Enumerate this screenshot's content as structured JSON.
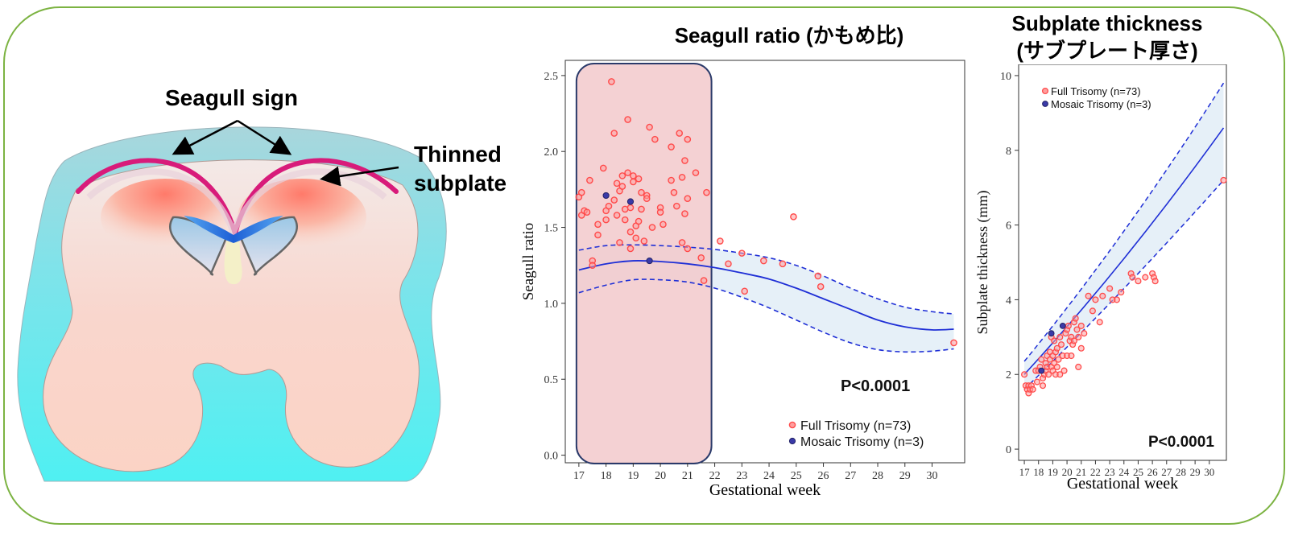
{
  "illustration": {
    "seagull_sign_label": "Seagull sign",
    "thinned_subplate_line1": "Thinned",
    "thinned_subplate_line2": "subplate"
  },
  "colors": {
    "frame": "#7cb342",
    "full_trisomy": "#ff4b4b",
    "mosaic_trisomy": "#3a3aa8",
    "fit_line": "#1f2fd6",
    "highlight_fill": "#f2c9cb",
    "highlight_stroke": "#2a3a6a",
    "band_fill": "#e6f0f8",
    "brain_cyan": "#5fe6ea",
    "brain_pink": "#f6d2c9",
    "seagull_magenta": "#d81b7a"
  },
  "chart_data": [
    {
      "type": "scatter",
      "title": "Seagull ratio (かもめ比)",
      "xlabel": "Gestational week",
      "ylabel": "Seagull ratio",
      "xlim": [
        16.5,
        31.2
      ],
      "ylim": [
        -0.05,
        2.6
      ],
      "xticks": [
        17,
        18,
        19,
        20,
        21,
        22,
        23,
        24,
        25,
        26,
        27,
        28,
        29,
        30
      ],
      "yticks": [
        0.0,
        0.5,
        1.0,
        1.5,
        2.0,
        2.5
      ],
      "ytick_labels": [
        "0.0",
        "0.5",
        "1.0",
        "1.5",
        "2.0",
        "2.5"
      ],
      "highlight_x_range": [
        17,
        22
      ],
      "annotation": "P<0.0001",
      "legend_position": "bottom-right",
      "legend": [
        "Full Trisomy (n=73)",
        "Mosaic Trisomy (n=3)"
      ],
      "fit": {
        "x": [
          17,
          18,
          19,
          20,
          21,
          22,
          23,
          24,
          25,
          26,
          27,
          28,
          29,
          30,
          30.8
        ],
        "y": [
          1.22,
          1.26,
          1.28,
          1.275,
          1.26,
          1.235,
          1.2,
          1.16,
          1.1,
          1.03,
          0.96,
          0.89,
          0.845,
          0.825,
          0.83
        ],
        "lower": [
          1.07,
          1.12,
          1.155,
          1.155,
          1.14,
          1.1,
          1.04,
          0.97,
          0.89,
          0.81,
          0.74,
          0.695,
          0.68,
          0.685,
          0.7
        ],
        "upper": [
          1.35,
          1.38,
          1.385,
          1.38,
          1.37,
          1.355,
          1.33,
          1.3,
          1.25,
          1.18,
          1.1,
          1.03,
          0.975,
          0.945,
          0.93
        ]
      },
      "series": [
        {
          "name": "Full Trisomy (n=73)",
          "points": [
            [
              17.0,
              1.7
            ],
            [
              17.1,
              1.58
            ],
            [
              17.1,
              1.73
            ],
            [
              17.2,
              1.61
            ],
            [
              17.3,
              1.6
            ],
            [
              17.4,
              1.81
            ],
            [
              17.5,
              1.28
            ],
            [
              17.5,
              1.25
            ],
            [
              17.7,
              1.52
            ],
            [
              17.7,
              1.45
            ],
            [
              17.9,
              1.89
            ],
            [
              18.0,
              1.61
            ],
            [
              18.0,
              1.55
            ],
            [
              18.1,
              1.64
            ],
            [
              18.2,
              2.46
            ],
            [
              18.3,
              2.12
            ],
            [
              18.3,
              1.68
            ],
            [
              18.4,
              1.79
            ],
            [
              18.4,
              1.58
            ],
            [
              18.5,
              1.4
            ],
            [
              18.5,
              1.74
            ],
            [
              18.6,
              1.84
            ],
            [
              18.6,
              1.77
            ],
            [
              18.7,
              1.62
            ],
            [
              18.7,
              1.55
            ],
            [
              18.8,
              2.21
            ],
            [
              18.8,
              1.86
            ],
            [
              18.9,
              1.63
            ],
            [
              18.9,
              1.47
            ],
            [
              18.9,
              1.36
            ],
            [
              19.0,
              1.8
            ],
            [
              19.0,
              1.84
            ],
            [
              19.1,
              1.51
            ],
            [
              19.1,
              1.43
            ],
            [
              19.2,
              1.82
            ],
            [
              19.2,
              1.54
            ],
            [
              19.3,
              1.73
            ],
            [
              19.3,
              1.62
            ],
            [
              19.4,
              1.41
            ],
            [
              19.5,
              1.71
            ],
            [
              19.5,
              1.69
            ],
            [
              19.6,
              2.16
            ],
            [
              19.7,
              1.5
            ],
            [
              19.8,
              2.08
            ],
            [
              20.0,
              1.63
            ],
            [
              20.0,
              1.6
            ],
            [
              20.1,
              1.52
            ],
            [
              20.4,
              2.03
            ],
            [
              20.4,
              1.81
            ],
            [
              20.5,
              1.73
            ],
            [
              20.6,
              1.64
            ],
            [
              20.7,
              2.12
            ],
            [
              20.8,
              1.4
            ],
            [
              20.8,
              1.83
            ],
            [
              20.9,
              1.94
            ],
            [
              20.9,
              1.59
            ],
            [
              21.0,
              1.36
            ],
            [
              21.0,
              1.69
            ],
            [
              21.0,
              2.08
            ],
            [
              21.3,
              1.86
            ],
            [
              21.5,
              1.3
            ],
            [
              21.6,
              1.15
            ],
            [
              21.7,
              1.73
            ],
            [
              22.2,
              1.41
            ],
            [
              22.5,
              1.26
            ],
            [
              23.0,
              1.33
            ],
            [
              23.1,
              1.08
            ],
            [
              23.8,
              1.28
            ],
            [
              24.5,
              1.26
            ],
            [
              24.9,
              1.57
            ],
            [
              25.8,
              1.18
            ],
            [
              25.9,
              1.11
            ],
            [
              30.8,
              0.74
            ]
          ]
        },
        {
          "name": "Mosaic Trisomy (n=3)",
          "points": [
            [
              18.0,
              1.71
            ],
            [
              18.9,
              1.67
            ],
            [
              19.6,
              1.28
            ]
          ]
        }
      ]
    },
    {
      "type": "scatter",
      "title_line1": "Subplate thickness",
      "title_line2": "(サブプレート厚さ)",
      "xlabel": "Gestational week",
      "ylabel": "Subplate thickness (mm)",
      "xlim": [
        16.6,
        31.2
      ],
      "ylim": [
        -0.3,
        10.3
      ],
      "xticks": [
        17,
        18,
        19,
        20,
        21,
        22,
        23,
        24,
        25,
        26,
        27,
        28,
        29,
        30
      ],
      "yticks": [
        0,
        2,
        4,
        6,
        8,
        10
      ],
      "annotation": "P<0.0001",
      "legend_position": "top-left",
      "legend": [
        "Full Trisomy (n=73)",
        "Mosaic Trisomy (n=3)"
      ],
      "fit": {
        "x": [
          17,
          31
        ],
        "y": [
          2.0,
          8.6
        ],
        "lower": [
          1.6,
          7.2
        ],
        "upper": [
          2.35,
          9.8
        ]
      },
      "series": [
        {
          "name": "Full Trisomy (n=73)",
          "points": [
            [
              17.0,
              2.0
            ],
            [
              17.1,
              1.7
            ],
            [
              17.2,
              1.6
            ],
            [
              17.3,
              1.5
            ],
            [
              17.3,
              1.7
            ],
            [
              17.4,
              1.6
            ],
            [
              17.5,
              1.7
            ],
            [
              17.6,
              1.6
            ],
            [
              17.8,
              2.1
            ],
            [
              17.9,
              1.8
            ],
            [
              18.0,
              2.1
            ],
            [
              18.1,
              2.2
            ],
            [
              18.2,
              2.4
            ],
            [
              18.3,
              1.7
            ],
            [
              18.3,
              1.9
            ],
            [
              18.4,
              2.0
            ],
            [
              18.5,
              2.3
            ],
            [
              18.5,
              2.1
            ],
            [
              18.6,
              2.5
            ],
            [
              18.6,
              2.2
            ],
            [
              18.7,
              2.0
            ],
            [
              18.8,
              2.4
            ],
            [
              18.8,
              2.6
            ],
            [
              18.9,
              2.2
            ],
            [
              18.9,
              3.0
            ],
            [
              19.0,
              2.5
            ],
            [
              19.0,
              2.1
            ],
            [
              19.1,
              2.9
            ],
            [
              19.1,
              2.3
            ],
            [
              19.2,
              2.0
            ],
            [
              19.2,
              2.6
            ],
            [
              19.3,
              2.7
            ],
            [
              19.3,
              2.2
            ],
            [
              19.4,
              2.4
            ],
            [
              19.5,
              2.0
            ],
            [
              19.5,
              3.0
            ],
            [
              19.6,
              2.8
            ],
            [
              19.7,
              2.5
            ],
            [
              19.8,
              2.1
            ],
            [
              19.9,
              3.1
            ],
            [
              20.0,
              2.5
            ],
            [
              20.0,
              3.2
            ],
            [
              20.1,
              3.3
            ],
            [
              20.2,
              2.9
            ],
            [
              20.3,
              3.0
            ],
            [
              20.3,
              2.5
            ],
            [
              20.4,
              2.8
            ],
            [
              20.5,
              3.4
            ],
            [
              20.5,
              2.9
            ],
            [
              20.6,
              3.5
            ],
            [
              20.7,
              3.2
            ],
            [
              20.8,
              3.0
            ],
            [
              20.8,
              2.2
            ],
            [
              21.0,
              3.3
            ],
            [
              21.0,
              2.7
            ],
            [
              21.2,
              3.1
            ],
            [
              21.5,
              4.1
            ],
            [
              21.8,
              3.7
            ],
            [
              22.0,
              4.0
            ],
            [
              22.3,
              3.4
            ],
            [
              22.5,
              4.1
            ],
            [
              23.0,
              4.3
            ],
            [
              23.2,
              4.0
            ],
            [
              23.5,
              4.0
            ],
            [
              23.8,
              4.2
            ],
            [
              24.5,
              4.7
            ],
            [
              24.6,
              4.6
            ],
            [
              25.0,
              4.5
            ],
            [
              25.5,
              4.6
            ],
            [
              26.0,
              4.7
            ],
            [
              26.1,
              4.6
            ],
            [
              26.2,
              4.5
            ],
            [
              31.0,
              7.2
            ]
          ]
        },
        {
          "name": "Mosaic Trisomy (n=3)",
          "points": [
            [
              18.2,
              2.1
            ],
            [
              18.9,
              3.1
            ],
            [
              19.7,
              3.3
            ]
          ]
        }
      ]
    }
  ]
}
